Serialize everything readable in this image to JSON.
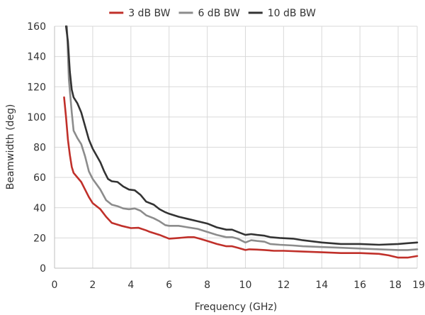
{
  "chart_data": {
    "type": "line",
    "title": "",
    "xlabel": "Frequency (GHz)",
    "ylabel": "Beamwidth (deg)",
    "xlim": [
      0,
      19
    ],
    "ylim": [
      0,
      160
    ],
    "x_ticks": [
      0,
      2,
      4,
      6,
      8,
      10,
      12,
      14,
      16,
      18,
      19
    ],
    "y_ticks": [
      0,
      20,
      40,
      60,
      80,
      100,
      120,
      140,
      160
    ],
    "grid": "vertical-and-horizontal",
    "legend_position": "top-center",
    "series": [
      {
        "name": "3 dB BW",
        "color": "#c0302a",
        "points": [
          [
            0.5,
            113
          ],
          [
            0.6,
            100
          ],
          [
            0.7,
            85
          ],
          [
            0.8,
            75
          ],
          [
            0.9,
            67
          ],
          [
            1.0,
            63
          ],
          [
            1.2,
            60
          ],
          [
            1.4,
            57
          ],
          [
            1.6,
            52
          ],
          [
            1.8,
            47
          ],
          [
            2.0,
            43
          ],
          [
            2.4,
            39
          ],
          [
            2.7,
            34
          ],
          [
            3.0,
            30
          ],
          [
            3.5,
            28
          ],
          [
            4.0,
            26.5
          ],
          [
            4.4,
            26.7
          ],
          [
            4.8,
            25
          ],
          [
            5.0,
            24
          ],
          [
            5.5,
            22
          ],
          [
            6.0,
            19.5
          ],
          [
            6.5,
            20
          ],
          [
            7.0,
            20.5
          ],
          [
            7.3,
            20.5
          ],
          [
            7.6,
            19.5
          ],
          [
            8.0,
            18
          ],
          [
            8.5,
            16
          ],
          [
            9.0,
            14.5
          ],
          [
            9.3,
            14.5
          ],
          [
            9.6,
            13.5
          ],
          [
            10.0,
            12
          ],
          [
            10.2,
            12.5
          ],
          [
            10.6,
            12.3
          ],
          [
            11.0,
            12
          ],
          [
            11.5,
            11.5
          ],
          [
            12.0,
            11.5
          ],
          [
            13.0,
            11
          ],
          [
            14.0,
            10.5
          ],
          [
            15.0,
            10
          ],
          [
            16.0,
            10
          ],
          [
            17.0,
            9.5
          ],
          [
            17.5,
            8.5
          ],
          [
            18.0,
            7
          ],
          [
            18.5,
            7
          ],
          [
            19.0,
            8
          ]
        ]
      },
      {
        "name": "6 dB BW",
        "color": "#8c8c8c",
        "points": [
          [
            0.65,
            160
          ],
          [
            0.75,
            125
          ],
          [
            0.9,
            103
          ],
          [
            1.0,
            91
          ],
          [
            1.2,
            86
          ],
          [
            1.4,
            82
          ],
          [
            1.6,
            74
          ],
          [
            1.8,
            64
          ],
          [
            2.0,
            59
          ],
          [
            2.4,
            52
          ],
          [
            2.7,
            45
          ],
          [
            3.0,
            42
          ],
          [
            3.3,
            41
          ],
          [
            3.6,
            39.5
          ],
          [
            3.9,
            39
          ],
          [
            4.2,
            39.5
          ],
          [
            4.5,
            38
          ],
          [
            4.8,
            35
          ],
          [
            5.2,
            33
          ],
          [
            5.5,
            31
          ],
          [
            5.8,
            28.5
          ],
          [
            6.0,
            28
          ],
          [
            6.5,
            28
          ],
          [
            7.0,
            27
          ],
          [
            7.5,
            26
          ],
          [
            8.0,
            24
          ],
          [
            8.5,
            22
          ],
          [
            9.0,
            20.5
          ],
          [
            9.3,
            20.5
          ],
          [
            9.6,
            19.5
          ],
          [
            10.0,
            17
          ],
          [
            10.3,
            18.5
          ],
          [
            10.6,
            18
          ],
          [
            11.0,
            17.5
          ],
          [
            11.3,
            16
          ],
          [
            11.8,
            15.5
          ],
          [
            12.5,
            15
          ],
          [
            13.0,
            14.5
          ],
          [
            14.0,
            14
          ],
          [
            15.0,
            13.5
          ],
          [
            16.0,
            13
          ],
          [
            17.0,
            12.5
          ],
          [
            18.0,
            12
          ],
          [
            18.5,
            12
          ],
          [
            19.0,
            12.5
          ]
        ]
      },
      {
        "name": "10 dB BW",
        "color": "#333333",
        "points": [
          [
            0.6,
            160
          ],
          [
            0.7,
            150
          ],
          [
            0.8,
            130
          ],
          [
            0.9,
            118
          ],
          [
            1.0,
            113
          ],
          [
            1.2,
            109
          ],
          [
            1.4,
            103
          ],
          [
            1.6,
            94
          ],
          [
            1.8,
            85
          ],
          [
            2.0,
            79
          ],
          [
            2.4,
            70
          ],
          [
            2.6,
            64
          ],
          [
            2.8,
            59
          ],
          [
            3.0,
            57.5
          ],
          [
            3.3,
            57
          ],
          [
            3.6,
            54
          ],
          [
            3.9,
            52
          ],
          [
            4.2,
            51.5
          ],
          [
            4.5,
            48.5
          ],
          [
            4.8,
            44
          ],
          [
            5.2,
            42
          ],
          [
            5.5,
            39
          ],
          [
            5.8,
            37
          ],
          [
            6.0,
            36
          ],
          [
            6.5,
            34
          ],
          [
            7.0,
            32.5
          ],
          [
            7.5,
            31
          ],
          [
            8.0,
            29.5
          ],
          [
            8.5,
            27
          ],
          [
            9.0,
            25.5
          ],
          [
            9.3,
            25.5
          ],
          [
            9.6,
            24
          ],
          [
            10.0,
            22
          ],
          [
            10.3,
            22.5
          ],
          [
            10.6,
            22
          ],
          [
            11.0,
            21.5
          ],
          [
            11.3,
            20.5
          ],
          [
            11.8,
            20
          ],
          [
            12.5,
            19.5
          ],
          [
            13.0,
            18.5
          ],
          [
            14.0,
            17
          ],
          [
            15.0,
            16
          ],
          [
            16.0,
            16
          ],
          [
            17.0,
            15.5
          ],
          [
            18.0,
            16
          ],
          [
            18.5,
            16.5
          ],
          [
            19.0,
            17
          ]
        ]
      }
    ]
  }
}
